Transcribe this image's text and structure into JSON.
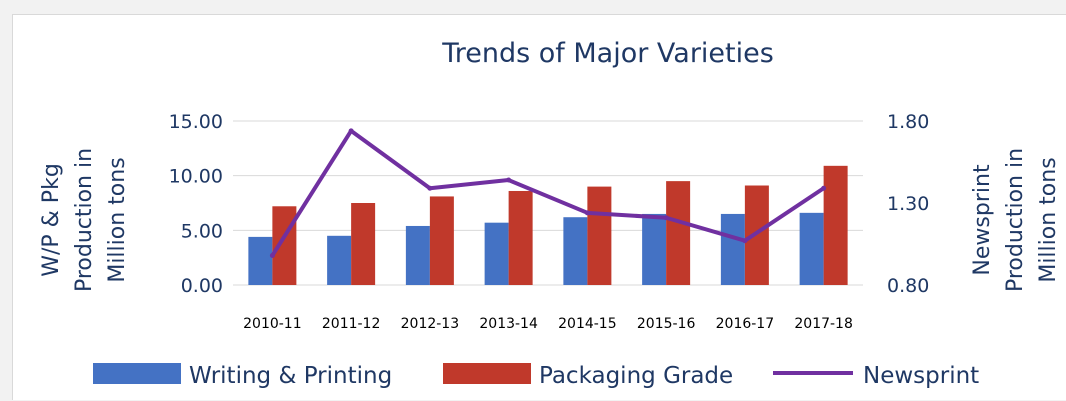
{
  "chart_data": {
    "type": "bar",
    "title": "Trends of Major Varieties",
    "categories": [
      "2010-11",
      "2011-12",
      "2012-13",
      "2013-14",
      "2014-15",
      "2015-16",
      "2016-17",
      "2017-18"
    ],
    "series": [
      {
        "name": "Writing & Printing",
        "type": "bar",
        "axis": "left",
        "color": "#4472c4",
        "values": [
          4.4,
          4.5,
          5.4,
          5.7,
          6.2,
          6.5,
          6.5,
          6.6
        ]
      },
      {
        "name": "Packaging Grade",
        "type": "bar",
        "axis": "left",
        "color": "#c0392b",
        "values": [
          7.2,
          7.5,
          8.1,
          8.6,
          9.0,
          9.5,
          9.1,
          10.9
        ]
      },
      {
        "name": "Newsprint",
        "type": "line",
        "axis": "right",
        "color": "#7030a0",
        "values": [
          0.98,
          1.74,
          1.39,
          1.44,
          1.24,
          1.21,
          1.07,
          1.39
        ]
      }
    ],
    "y_left": {
      "label_line1": "W/P & Pkg",
      "label_line2": "Production in",
      "label_line3": "Million tons",
      "ylim": [
        0,
        15
      ],
      "ticks": [
        "15.00",
        "10.00",
        "5.00",
        "0.00"
      ],
      "tick_values": [
        15,
        10,
        5,
        0
      ]
    },
    "y_right": {
      "label_line1": "Newsprint",
      "label_line2": "Production in",
      "label_line3": "Million tons",
      "ylim": [
        0.8,
        1.8
      ],
      "ticks": [
        "1.80",
        "1.30",
        "0.80"
      ],
      "tick_values": [
        1.8,
        1.3,
        0.8
      ]
    },
    "grid": true,
    "legend_position": "bottom"
  }
}
